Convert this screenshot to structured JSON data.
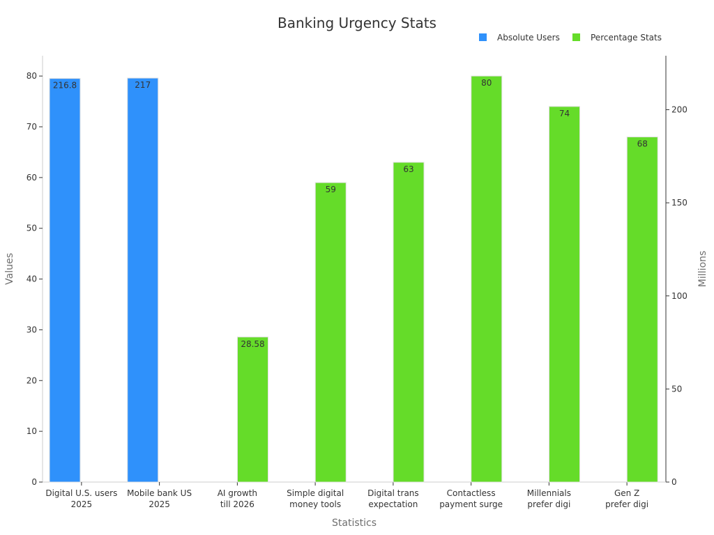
{
  "chart_data": {
    "type": "bar",
    "title": "Banking Urgency Stats",
    "xlabel": "Statistics",
    "ylabel": "Values",
    "y2label": "Millions",
    "ylim": [
      0,
      84
    ],
    "y2lim": [
      0,
      229
    ],
    "yticks": [
      0,
      10,
      20,
      30,
      40,
      50,
      60,
      70,
      80
    ],
    "y2ticks": [
      0,
      50,
      100,
      150,
      200
    ],
    "grid": false,
    "legend_position": "top-right",
    "categories": [
      [
        "Digital U.S. users",
        "2025"
      ],
      [
        "Mobile bank US",
        "2025"
      ],
      [
        "AI growth",
        "till 2026"
      ],
      [
        "Simple digital",
        "money tools"
      ],
      [
        "Digital trans",
        "expectation"
      ],
      [
        "Contactless",
        "payment surge"
      ],
      [
        "Millennials",
        "prefer digi"
      ],
      [
        "Gen Z",
        "prefer digi"
      ]
    ],
    "series": [
      {
        "name": "Absolute Users",
        "color": "#2f91fb",
        "values": [
          216.8,
          217,
          null,
          null,
          null,
          null,
          null,
          null
        ],
        "labels": [
          "216.8",
          "217",
          "",
          "",
          "",
          "",
          "",
          ""
        ]
      },
      {
        "name": "Percentage Stats",
        "color": "#65dc29",
        "values": [
          null,
          null,
          28.58,
          59,
          63,
          80,
          74,
          68
        ],
        "labels": [
          "",
          "",
          "28.58",
          "59",
          "63",
          "80",
          "74",
          "68"
        ]
      }
    ]
  }
}
